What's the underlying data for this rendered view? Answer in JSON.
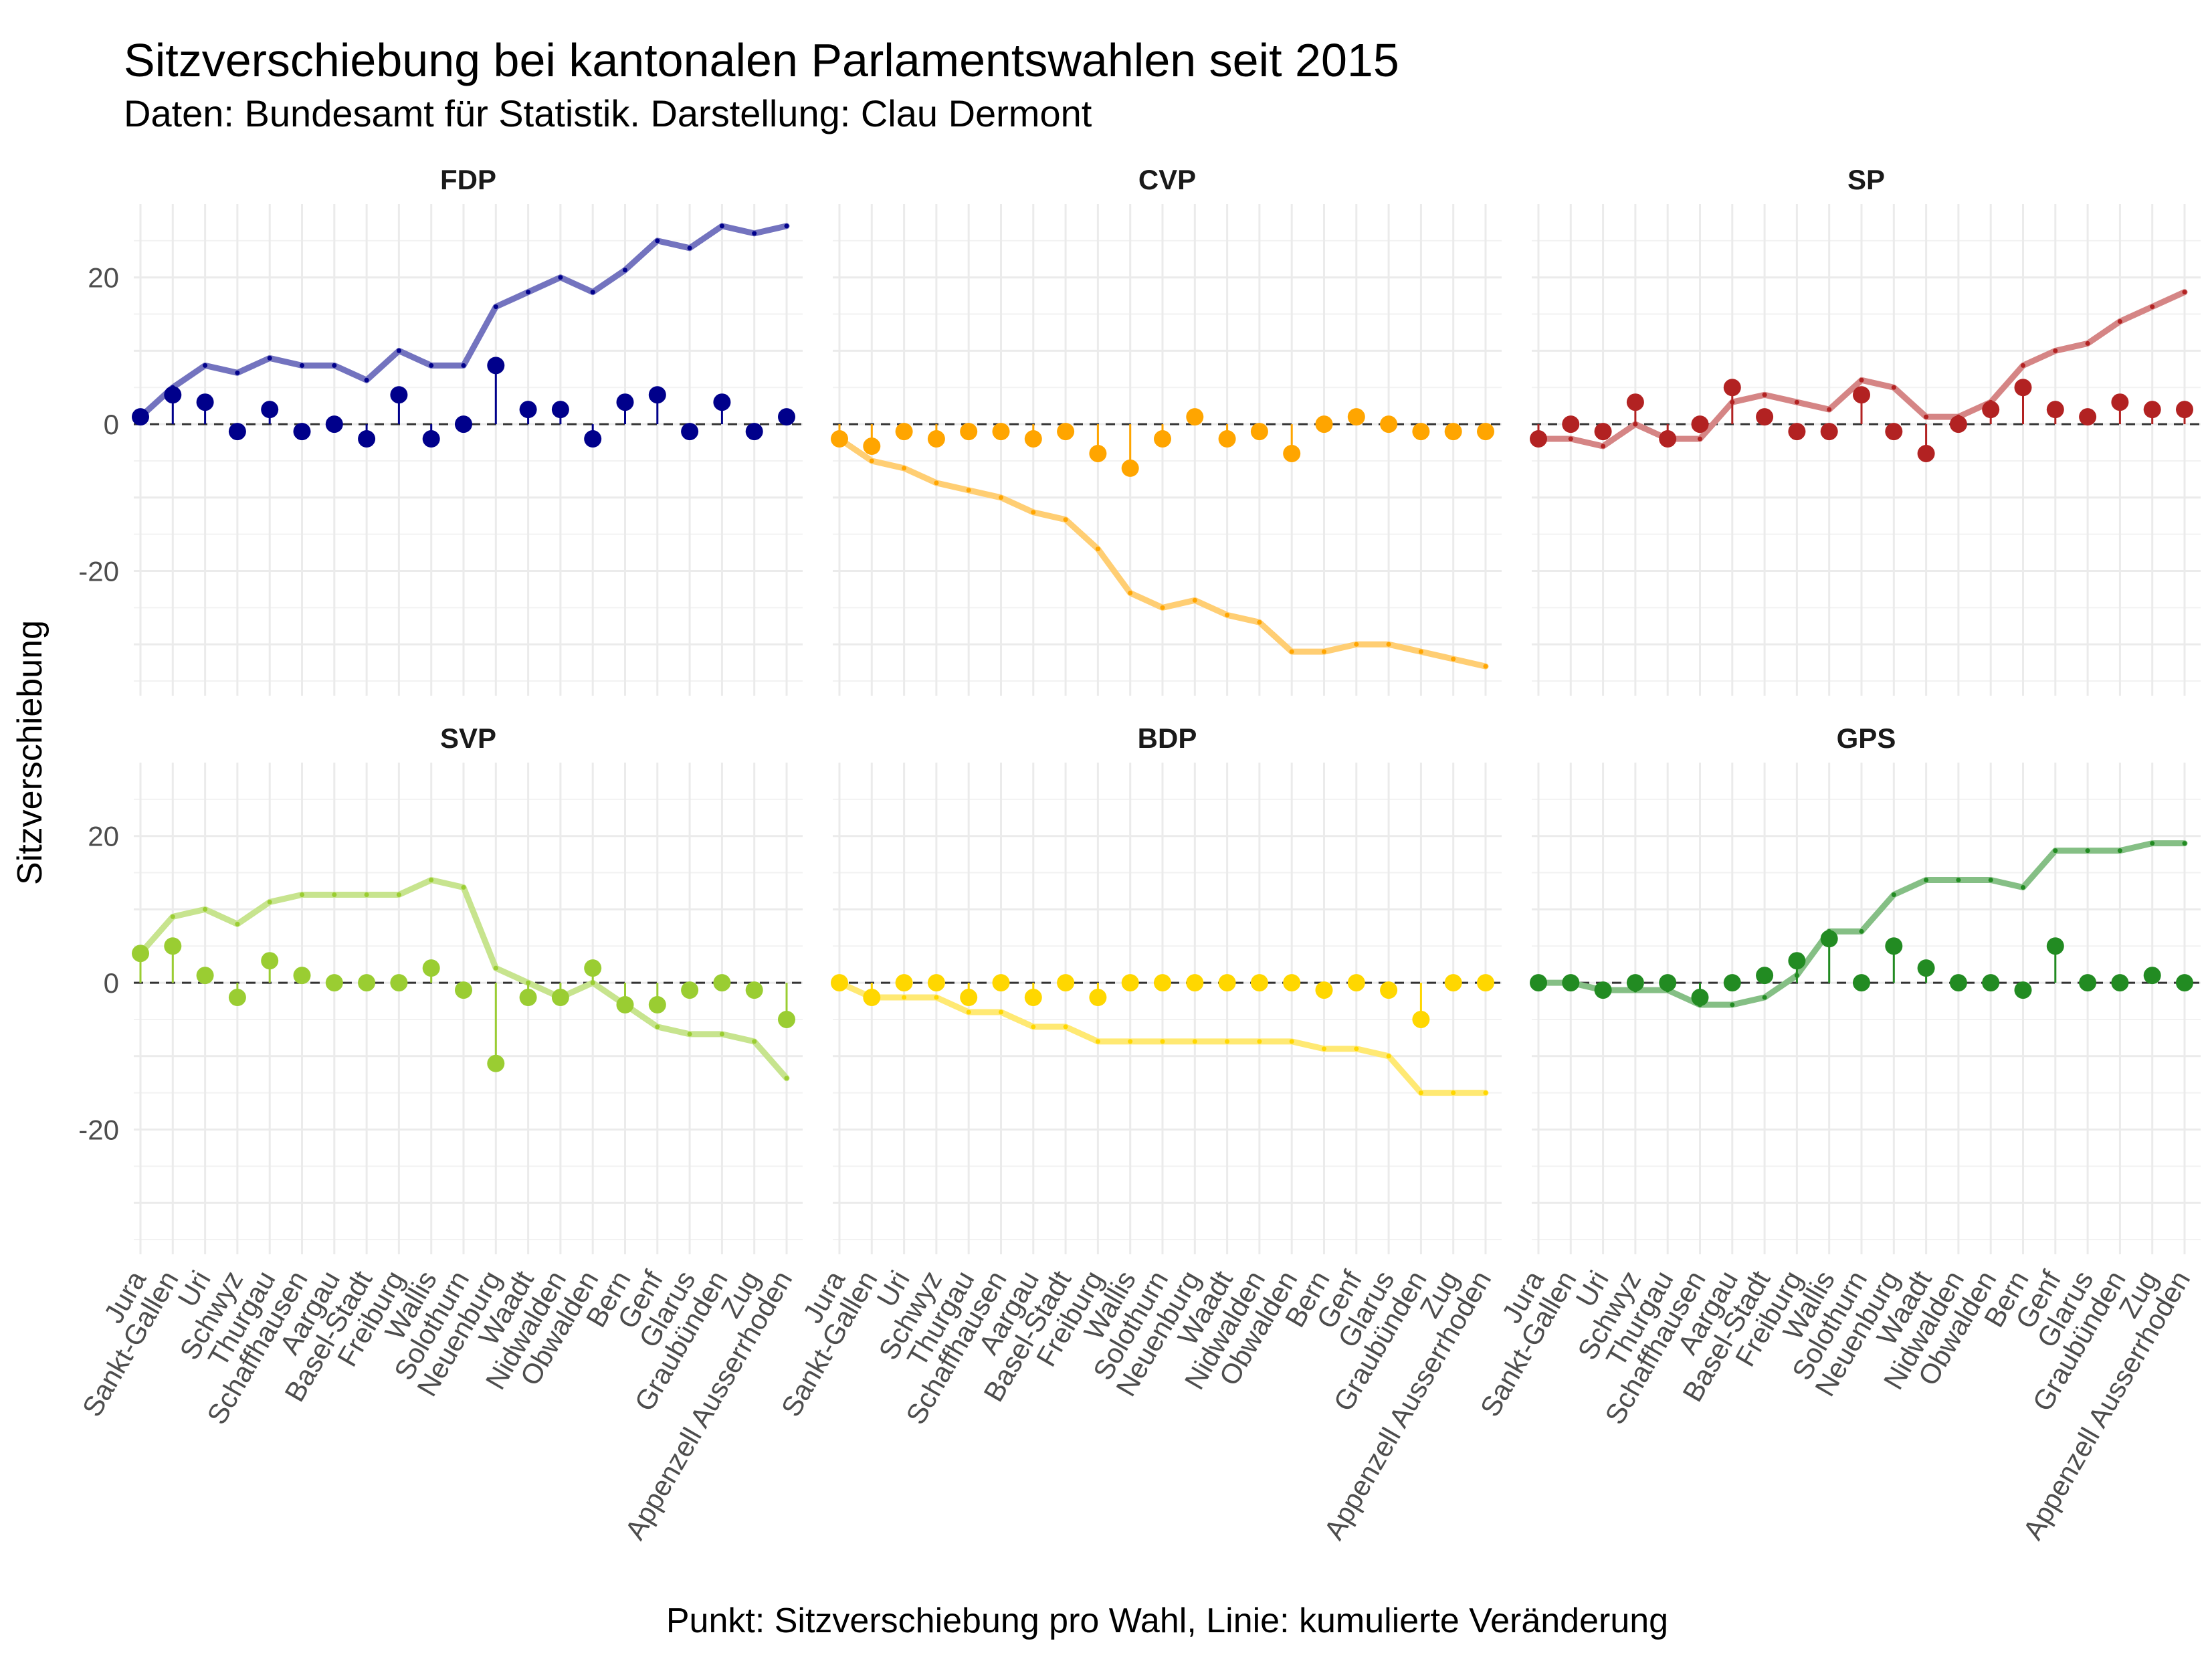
{
  "title": "Sitzverschiebung bei kantonalen Parlamentswahlen seit 2015",
  "subtitle": "Daten: Bundesamt für Statistik. Darstellung: Clau Dermont",
  "chart_data": {
    "type": "line",
    "xlabel": "Punkt: Sitzverschiebung pro Wahl, Linie: kumulierte Veränderung",
    "ylabel": "Sitzverschiebung",
    "ylim": [
      -37,
      30
    ],
    "yticks": [
      20,
      0,
      -20
    ],
    "grid": true,
    "reference_line": 0,
    "categories": [
      "Jura",
      "Sankt-Gallen",
      "Uri",
      "Schwyz",
      "Thurgau",
      "Schaffhausen",
      "Aargau",
      "Basel-Stadt",
      "Freiburg",
      "Wallis",
      "Solothurn",
      "Neuenburg",
      "Waadt",
      "Nidwalden",
      "Obwalden",
      "Bern",
      "Genf",
      "Glarus",
      "Graubünden",
      "Zug",
      "Appenzell Ausserrhoden"
    ],
    "facets": [
      {
        "name": "FDP",
        "color": "#00008B",
        "change": [
          1,
          4,
          3,
          -1,
          2,
          -1,
          0,
          -2,
          4,
          -2,
          0,
          8,
          2,
          2,
          -2,
          3,
          4,
          -1,
          3,
          -1,
          1
        ],
        "cumulative": [
          1,
          5,
          8,
          7,
          9,
          8,
          8,
          6,
          10,
          8,
          8,
          16,
          18,
          20,
          18,
          21,
          25,
          24,
          27,
          26,
          27
        ]
      },
      {
        "name": "CVP",
        "color": "#FFA500",
        "change": [
          -2,
          -3,
          -1,
          -2,
          -1,
          -1,
          -2,
          -1,
          -4,
          -6,
          -2,
          1,
          -2,
          -1,
          -4,
          0,
          1,
          0,
          -1,
          -1,
          -1
        ],
        "cumulative": [
          -2,
          -5,
          -6,
          -8,
          -9,
          -10,
          -12,
          -13,
          -17,
          -23,
          -25,
          -24,
          -26,
          -27,
          -31,
          -31,
          -30,
          -30,
          -31,
          -32,
          -33
        ]
      },
      {
        "name": "SP",
        "color": "#B22222",
        "change": [
          -2,
          0,
          -1,
          3,
          -2,
          0,
          5,
          1,
          -1,
          -1,
          4,
          -1,
          -4,
          0,
          2,
          5,
          2,
          1,
          3,
          2,
          2
        ],
        "cumulative": [
          -2,
          -2,
          -3,
          0,
          -2,
          -2,
          3,
          4,
          3,
          2,
          6,
          5,
          1,
          1,
          3,
          8,
          10,
          11,
          14,
          16,
          18
        ]
      },
      {
        "name": "SVP",
        "color": "#9ACD32",
        "change": [
          4,
          5,
          1,
          -2,
          3,
          1,
          0,
          0,
          0,
          2,
          -1,
          -11,
          -2,
          -2,
          2,
          -3,
          -3,
          -1,
          0,
          -1,
          -5
        ],
        "cumulative": [
          4,
          9,
          10,
          8,
          11,
          12,
          12,
          12,
          12,
          14,
          13,
          2,
          0,
          -2,
          0,
          -3,
          -6,
          -7,
          -7,
          -8,
          -13
        ]
      },
      {
        "name": "BDP",
        "color": "#FFD700",
        "change": [
          0,
          -2,
          0,
          0,
          -2,
          0,
          -2,
          0,
          -2,
          0,
          0,
          0,
          0,
          0,
          0,
          -1,
          0,
          -1,
          -5,
          0,
          0
        ],
        "cumulative": [
          0,
          -2,
          -2,
          -2,
          -4,
          -4,
          -6,
          -6,
          -8,
          -8,
          -8,
          -8,
          -8,
          -8,
          -8,
          -9,
          -9,
          -10,
          -15,
          -15,
          -15
        ]
      },
      {
        "name": "GPS",
        "color": "#228B22",
        "change": [
          0,
          0,
          -1,
          0,
          0,
          -2,
          0,
          1,
          3,
          6,
          0,
          5,
          2,
          0,
          0,
          -1,
          5,
          0,
          0,
          1,
          0
        ],
        "cumulative": [
          0,
          0,
          -1,
          -1,
          -1,
          -3,
          -3,
          -2,
          1,
          7,
          7,
          12,
          14,
          14,
          14,
          13,
          18,
          18,
          18,
          19,
          19
        ]
      }
    ]
  }
}
